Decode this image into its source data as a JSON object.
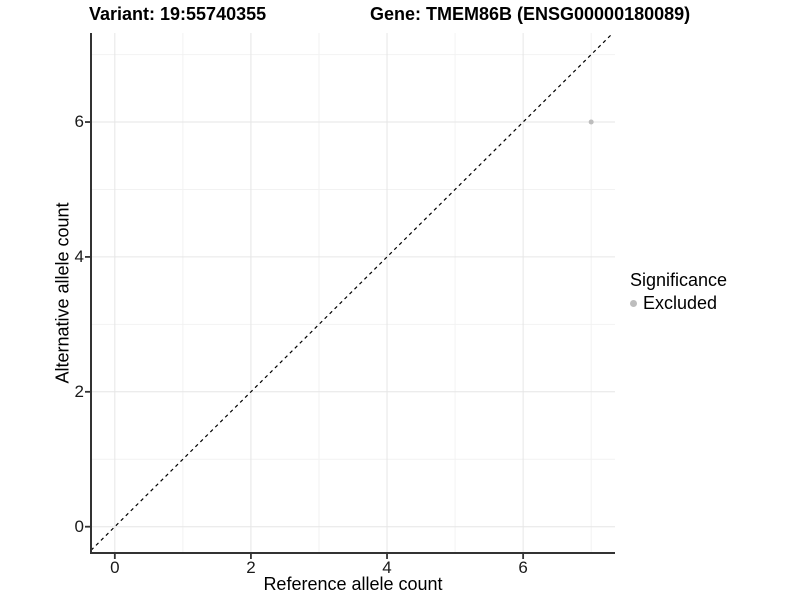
{
  "figure": {
    "title_left": "Variant: 19:55740355",
    "title_right": "Gene: TMEM86B (ENSG00000180089)"
  },
  "chart_data": {
    "type": "scatter",
    "title_left": "Variant: 19:55740355",
    "title_right": "Gene: TMEM86B (ENSG00000180089)",
    "xlabel": "Reference allele count",
    "ylabel": "Alternative allele count",
    "xlim": [
      -0.35,
      7.35
    ],
    "ylim": [
      -0.39,
      7.32
    ],
    "xticks": [
      0,
      2,
      4,
      6
    ],
    "yticks": [
      0,
      2,
      4,
      6
    ],
    "minor_xticks": [
      1,
      3,
      5,
      7
    ],
    "minor_yticks": [
      1,
      3,
      5,
      7
    ],
    "grid": true,
    "points": [
      {
        "x": 7,
        "y": 6,
        "series": "Excluded"
      }
    ],
    "reference_line": {
      "type": "identity",
      "slope": 1,
      "intercept": 0,
      "style": "dashed"
    },
    "legend": {
      "title": "Significance",
      "position": "right",
      "entries": [
        {
          "label": "Excluded",
          "color": "#bdbdbd"
        }
      ]
    },
    "colors": {
      "point": "#bdbdbd",
      "major_grid": "#e6e6e6",
      "minor_grid": "#f2f2f2",
      "axis_line": "#333333",
      "tick_mark": "#333333",
      "reference_line": "#000000",
      "background": "#ffffff"
    },
    "point_radius": 2.5
  }
}
